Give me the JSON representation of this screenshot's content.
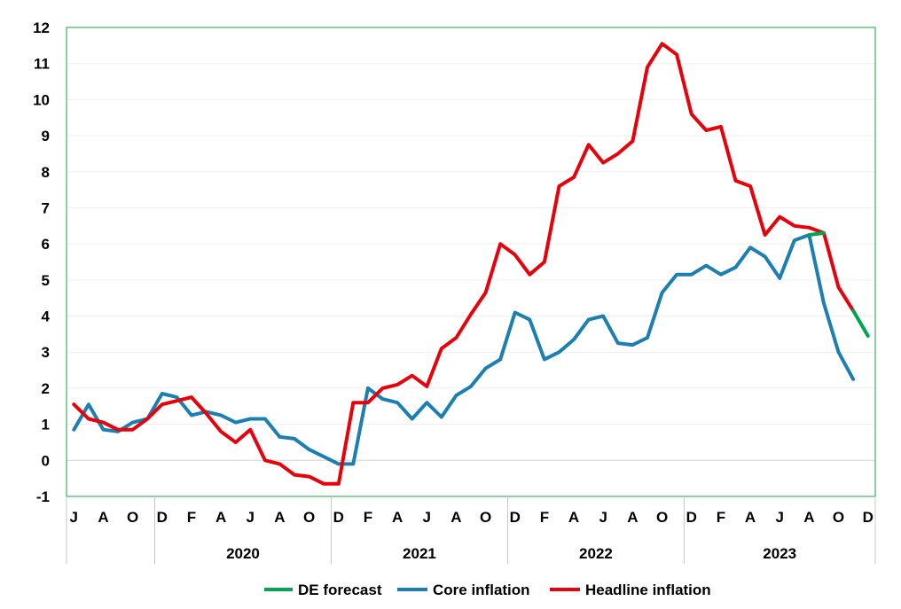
{
  "chart_data": {
    "type": "line",
    "ylim": [
      -1,
      12
    ],
    "y_ticks": [
      "12",
      "11",
      "10",
      "9",
      "8",
      "7",
      "6",
      "5",
      "4",
      "3",
      "2",
      "1",
      "0",
      "-1"
    ],
    "month_ticks": [
      "J",
      "A",
      "O",
      "D",
      "F",
      "A",
      "J",
      "A",
      "O",
      "D",
      "F",
      "A",
      "J",
      "A",
      "O",
      "D",
      "F",
      "A",
      "J",
      "A",
      "O",
      "D",
      "F",
      "A",
      "J",
      "A",
      "O",
      "D"
    ],
    "years": [
      "2020",
      "2021",
      "2022",
      "2023"
    ],
    "grid": true,
    "legend_position": "bottom",
    "x_start": "2019-07",
    "series": [
      {
        "name": "Headline inflation",
        "color": "#e8000b",
        "values": [
          1.55,
          1.15,
          1.05,
          0.85,
          0.85,
          1.15,
          1.55,
          1.65,
          1.75,
          1.3,
          0.8,
          0.5,
          0.85,
          0.0,
          -0.1,
          -0.4,
          -0.45,
          -0.65,
          -0.65,
          1.6,
          1.6,
          2.0,
          2.1,
          2.35,
          2.05,
          3.1,
          3.4,
          4.05,
          4.65,
          6.0,
          5.7,
          5.15,
          5.5,
          7.6,
          7.85,
          8.75,
          8.25,
          8.5,
          8.85,
          10.9,
          11.55,
          11.25,
          9.6,
          9.15,
          9.25,
          7.75,
          7.6,
          6.25,
          6.75,
          6.5,
          6.45,
          6.3,
          4.8,
          4.15
        ]
      },
      {
        "name": "Core inflation",
        "color": "#1c7fb2",
        "values": [
          0.85,
          1.55,
          0.85,
          0.8,
          1.05,
          1.15,
          1.85,
          1.75,
          1.25,
          1.35,
          1.25,
          1.05,
          1.15,
          1.15,
          0.65,
          0.6,
          0.3,
          0.1,
          -0.1,
          -0.1,
          2.0,
          1.7,
          1.6,
          1.15,
          1.6,
          1.2,
          1.8,
          2.05,
          2.55,
          2.8,
          4.1,
          3.9,
          2.8,
          3.0,
          3.35,
          3.9,
          4.0,
          3.25,
          3.2,
          3.4,
          4.65,
          5.15,
          5.15,
          5.4,
          5.15,
          5.35,
          5.9,
          5.65,
          5.05,
          6.1,
          6.25,
          4.35,
          3.0,
          2.25
        ]
      },
      {
        "name": "DE forecast",
        "color": "#00a551",
        "values": [
          null,
          null,
          null,
          null,
          null,
          null,
          null,
          null,
          null,
          null,
          null,
          null,
          null,
          null,
          null,
          null,
          null,
          null,
          null,
          null,
          null,
          null,
          null,
          null,
          null,
          null,
          null,
          null,
          null,
          null,
          null,
          null,
          null,
          null,
          null,
          null,
          null,
          null,
          null,
          null,
          null,
          null,
          null,
          null,
          null,
          null,
          null,
          null,
          null,
          null,
          6.25,
          6.3,
          null,
          4.15,
          3.45
        ]
      }
    ],
    "legend": [
      "DE forecast",
      "Core inflation",
      "Headline inflation"
    ]
  }
}
